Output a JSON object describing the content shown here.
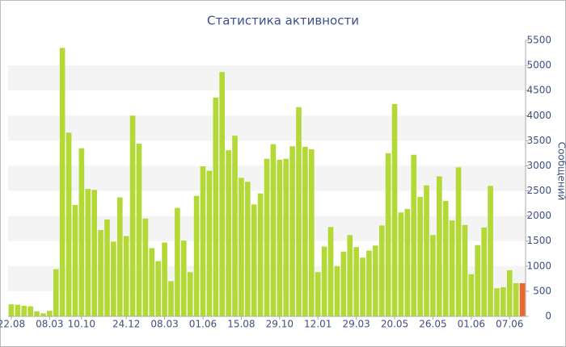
{
  "chart_data": {
    "type": "bar",
    "title": "Статистика активности",
    "y_label": "Сообщений",
    "categories": [
      "22.08",
      null,
      null,
      null,
      null,
      null,
      "08.03",
      null,
      null,
      null,
      null,
      "10.10",
      null,
      null,
      null,
      null,
      null,
      null,
      "24.12",
      null,
      null,
      null,
      null,
      null,
      "08.03",
      null,
      null,
      null,
      null,
      null,
      "01.06",
      null,
      null,
      null,
      null,
      null,
      "15.08",
      null,
      null,
      null,
      null,
      null,
      "29.10",
      null,
      null,
      null,
      null,
      null,
      "12.01",
      null,
      null,
      null,
      null,
      null,
      "29.03",
      null,
      null,
      null,
      null,
      null,
      "20.05",
      null,
      null,
      null,
      null,
      null,
      "26.05",
      null,
      null,
      null,
      null,
      null,
      "01.06",
      null,
      null,
      null,
      null,
      null,
      "07.06",
      null,
      null
    ],
    "values": [
      240,
      230,
      210,
      200,
      100,
      60,
      110,
      940,
      5350,
      3660,
      2220,
      3350,
      2540,
      2520,
      1720,
      1930,
      1490,
      2370,
      1600,
      4000,
      3440,
      1950,
      1360,
      1100,
      1470,
      700,
      2160,
      1510,
      880,
      2400,
      2990,
      2900,
      4360,
      4870,
      3310,
      3600,
      2760,
      2680,
      2230,
      2450,
      3140,
      3430,
      3120,
      3140,
      3390,
      4170,
      3380,
      3330,
      880,
      1390,
      1780,
      1000,
      1290,
      1620,
      1380,
      1170,
      1310,
      1410,
      1810,
      3250,
      4230,
      2070,
      2140,
      3220,
      2380,
      2610,
      1620,
      2790,
      2300,
      1910,
      2970,
      1820,
      840,
      1420,
      1770,
      2600,
      560,
      580,
      920,
      660,
      660
    ],
    "color": "#b2d935",
    "last_color": "#e8692b",
    "ylim": [
      0,
      5500
    ],
    "yticks": [
      0,
      500,
      1000,
      1500,
      2000,
      2500,
      3000,
      3500,
      4000,
      4500,
      5000,
      5500
    ],
    "grid": "bands",
    "y_axis_side": "right"
  }
}
